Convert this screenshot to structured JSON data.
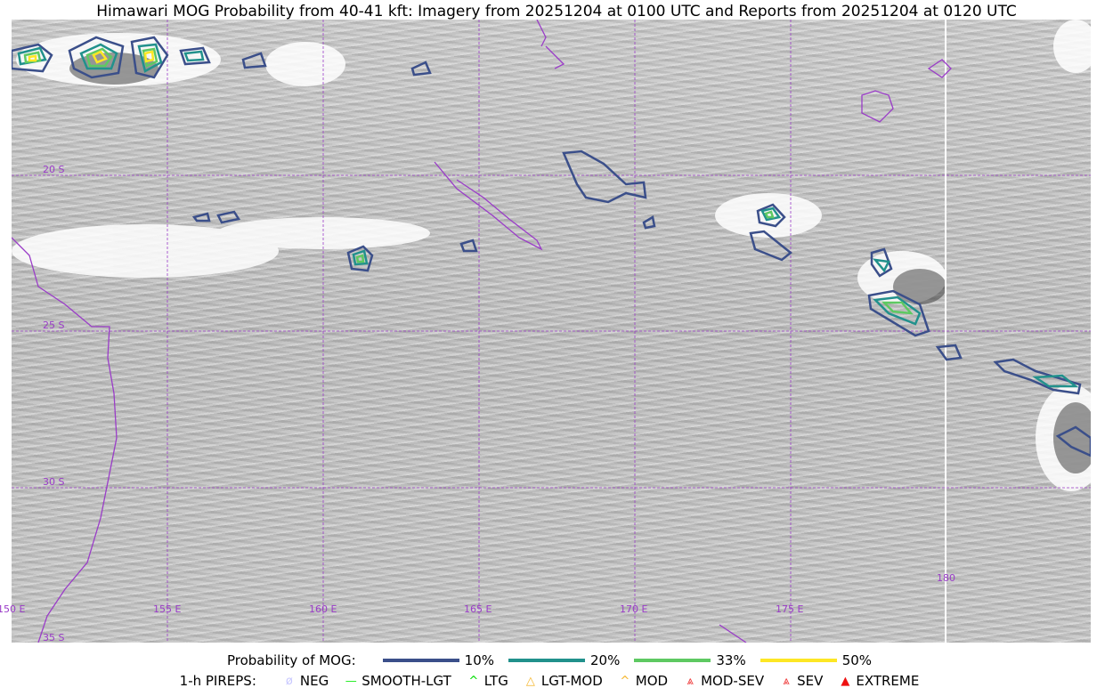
{
  "title": "Himawari MOG Probability from 40-41 kft: Imagery from 20251204 at 0100 UTC and Reports from 20251204 at 0120 UTC",
  "map": {
    "lat_labels": [
      "20 S",
      "25 S",
      "30 S",
      "35 S"
    ],
    "lon_labels": [
      "150 E",
      "155 E",
      "160 E",
      "165 E",
      "170 E",
      "175 E",
      "180"
    ],
    "gridline_color": "#9a3cc8",
    "coastline_color": "#9a3cc8"
  },
  "legend": {
    "prob_title": "Probability of MOG:",
    "prob_items": [
      {
        "label": "10%",
        "color": "#3b4f8a"
      },
      {
        "label": "20%",
        "color": "#21918c"
      },
      {
        "label": "33%",
        "color": "#5ec962"
      },
      {
        "label": "50%",
        "color": "#fde725"
      }
    ],
    "pirep_title": "1-h PIREPS:",
    "pirep_items": [
      {
        "label": "NEG",
        "icon": "neg-circle-icon",
        "color": "#c8c8ff",
        "glyph": "ø"
      },
      {
        "label": "SMOOTH-LGT",
        "icon": "line-icon",
        "color": "#22ee22",
        "glyph": "—"
      },
      {
        "label": "LTG",
        "icon": "caret-icon",
        "color": "#00dd00",
        "glyph": "^"
      },
      {
        "label": "LGT-MOD",
        "icon": "triangle-icon",
        "color": "#f5b52a",
        "glyph": "△"
      },
      {
        "label": "MOD",
        "icon": "caret-icon",
        "color": "#f5b52a",
        "glyph": "^"
      },
      {
        "label": "MOD-SEV",
        "icon": "double-caret-icon",
        "color": "#ee3333",
        "glyph": "⩓"
      },
      {
        "label": "SEV",
        "icon": "double-caret-icon",
        "color": "#ee3333",
        "glyph": "⩓"
      },
      {
        "label": "EXTREME",
        "icon": "filled-triangle-icon",
        "color": "#ee1111",
        "glyph": "▲"
      }
    ]
  }
}
